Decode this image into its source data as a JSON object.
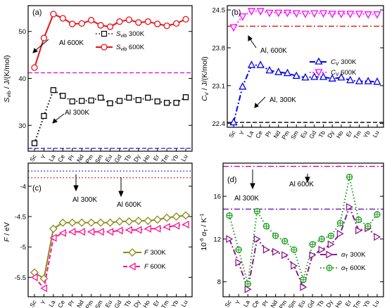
{
  "chart_data": [
    {
      "type": "line",
      "panel_label": "(a)",
      "ylabel": "S_vib / J/(K/mol)",
      "categories": [
        "Sc",
        "Y",
        "La",
        "Ce",
        "Pr",
        "Nd",
        "Pm",
        "Sm",
        "Eu",
        "Gd",
        "Tb",
        "Dy",
        "Ho",
        "Er",
        "Tm",
        "Yb",
        "Lu"
      ],
      "ylim": [
        24.5,
        55.5
      ],
      "yticks": [
        30,
        40,
        50
      ],
      "series": [
        {
          "name": "S_vib 300K",
          "values": [
            26.2,
            32.0,
            37.5,
            36.3,
            35.1,
            35.2,
            35.3,
            35.9,
            34.7,
            35.2,
            35.9,
            35.4,
            35.9,
            35.1,
            34.8,
            34.8,
            36.0
          ],
          "color": "#000000",
          "style": "dot",
          "marker": "square"
        },
        {
          "name": "S_vib 600K",
          "values": [
            42.3,
            48.6,
            53.7,
            52.8,
            51.6,
            51.7,
            52.4,
            51.3,
            51.0,
            52.1,
            52.5,
            51.9,
            52.1,
            51.6,
            51.2,
            51.7,
            52.6
          ],
          "color": "#e8131b",
          "style": "solid",
          "marker": "circle"
        }
      ],
      "reference_lines": [
        {
          "label": "Al 600K",
          "value": 41.2,
          "color": "#e000e0",
          "style": "dash"
        },
        {
          "label": "Al 300K",
          "value": 25.1,
          "color": "#1020d0",
          "style": "dash"
        }
      ],
      "legend_position": "right"
    },
    {
      "type": "line",
      "panel_label": "(b)",
      "ylabel": "C_V / J/(K/mol)",
      "categories": [
        "Sc",
        "Y",
        "La",
        "Ce",
        "Pr",
        "Nd",
        "Pm",
        "Sm",
        "Eu",
        "Gd",
        "Tb",
        "Dy",
        "Ho",
        "Er",
        "Tm",
        "Yb",
        "Lu"
      ],
      "ylim": [
        22.33,
        24.58
      ],
      "yticks": [
        22.4,
        23.1,
        23.8,
        24.5
      ],
      "series": [
        {
          "name": "C_V 300K",
          "values": [
            22.42,
            23.08,
            23.48,
            23.48,
            23.38,
            23.35,
            23.33,
            23.28,
            23.25,
            23.26,
            23.26,
            23.23,
            23.25,
            23.2,
            23.18,
            23.18,
            23.17
          ],
          "color": "#0000ee",
          "style": "dashdot",
          "marker": "triangle-up"
        },
        {
          "name": "C_V 600K",
          "values": [
            24.18,
            24.38,
            24.48,
            24.48,
            24.45,
            24.45,
            24.45,
            24.44,
            24.43,
            24.44,
            24.44,
            24.43,
            24.43,
            24.43,
            24.43,
            24.42,
            24.42
          ],
          "color": "#ff00ff",
          "style": "dot",
          "marker": "triangle-down"
        }
      ],
      "reference_lines": [
        {
          "label": "Al, 600K",
          "value": 24.2,
          "color": "#e00000",
          "style": "dashdot"
        },
        {
          "label": "Al, 300K",
          "value": 22.42,
          "color": "#000000",
          "style": "dash"
        }
      ],
      "legend_position": "right"
    },
    {
      "type": "line",
      "panel_label": "(c)",
      "ylabel": "F / eV",
      "categories": [
        "Sc",
        "Y",
        "La",
        "Ce",
        "Pr",
        "Nd",
        "Pm",
        "Sm",
        "Eu",
        "Gd",
        "Tb",
        "Dy",
        "Ho",
        "Er",
        "Tm",
        "Yb",
        "Lu"
      ],
      "ylim": [
        -5.82,
        -3.62
      ],
      "yticks": [
        -4.0,
        -4.5,
        -5.0,
        -5.5
      ],
      "series": [
        {
          "name": "F 300K",
          "values": [
            -5.42,
            -5.52,
            -4.7,
            -4.6,
            -4.6,
            -4.6,
            -4.6,
            -4.6,
            -4.6,
            -4.58,
            -4.58,
            -4.57,
            -4.57,
            -4.55,
            -4.52,
            -4.5,
            -4.48
          ],
          "color": "#8a8a1a",
          "style": "solid",
          "marker": "diamond"
        },
        {
          "name": "F 600K",
          "values": [
            -5.5,
            -5.68,
            -4.85,
            -4.77,
            -4.75,
            -4.75,
            -4.75,
            -4.75,
            -4.75,
            -4.73,
            -4.72,
            -4.72,
            -4.7,
            -4.7,
            -4.67,
            -4.65,
            -4.63
          ],
          "color": "#ff1493",
          "style": "dash",
          "marker": "triangle-left"
        }
      ],
      "reference_lines": [
        {
          "label": "Al 300K",
          "value": -3.86,
          "color": "#c00000",
          "style": "dot"
        },
        {
          "label": "Al 600K",
          "value": -3.75,
          "color": "#0000ee",
          "style": "dot"
        }
      ],
      "legend_position": "bottom-right"
    },
    {
      "type": "line",
      "panel_label": "(d)",
      "ylabel": "10^-6 α_T / K^-1",
      "categories": [
        "Sc",
        "Y",
        "La",
        "Ce",
        "Pr",
        "Nd",
        "Pm",
        "Sm",
        "Eu",
        "Gd",
        "Tb",
        "Dy",
        "Ho",
        "Er",
        "Tm",
        "Yb",
        "Lu"
      ],
      "ylim": [
        6.6,
        19.1
      ],
      "yticks": [
        8,
        12,
        16
      ],
      "series": [
        {
          "name": "α_T 300K",
          "values": [
            12.0,
            9.8,
            7.3,
            12.0,
            11.0,
            10.8,
            10.5,
            9.5,
            7.5,
            10.5,
            11.0,
            11.5,
            12.5,
            15.0,
            12.8,
            13.0,
            12.2
          ],
          "color": "#8b1a8b",
          "style": "dashdot",
          "marker": "triangle-right"
        },
        {
          "name": "α_T 600K",
          "values": [
            14.2,
            11.0,
            7.8,
            14.6,
            13.2,
            12.3,
            11.8,
            11.0,
            8.2,
            11.5,
            12.0,
            12.3,
            13.5,
            17.8,
            13.8,
            13.2,
            14.3
          ],
          "color": "#1a9a1a",
          "style": "dot",
          "marker": "circle-plus"
        }
      ],
      "reference_lines": [
        {
          "label": "Al 600K",
          "value": 18.8,
          "color": "#e000a0",
          "style": "dashdot"
        },
        {
          "label": "Al 300K",
          "value": 14.8,
          "color": "#6a00c0",
          "style": "dashdot"
        }
      ],
      "legend_position": "bottom-right"
    }
  ]
}
